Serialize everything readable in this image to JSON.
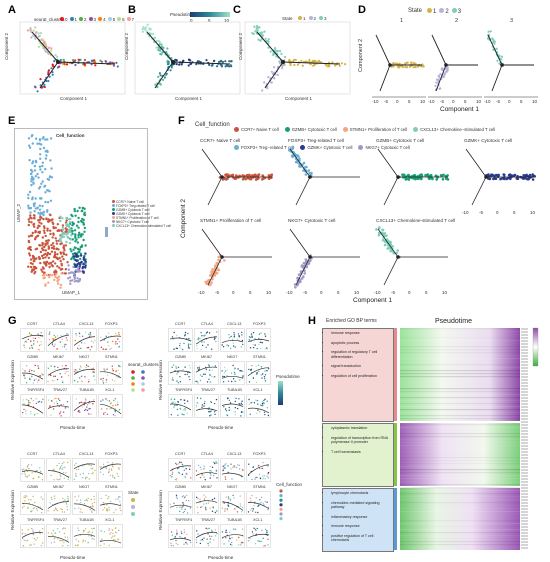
{
  "panels": {
    "A": {
      "letter": "A",
      "legend_title": "seurat_clusters",
      "legend_items": [
        "0",
        "1",
        "2",
        "3",
        "4",
        "5",
        "6",
        "7"
      ],
      "xlabel": "Component 1",
      "ylabel": "Component 2"
    },
    "B": {
      "letter": "B",
      "legend_title": "Pseudotime",
      "ticks": [
        "0",
        "5",
        "10"
      ],
      "xlabel": "Component 1",
      "ylabel": "Component 2"
    },
    "C": {
      "letter": "C",
      "legend_title": "State",
      "legend_items": [
        "1",
        "2",
        "3"
      ],
      "xlabel": "Component 1",
      "ylabel": "Component 2"
    },
    "D": {
      "letter": "D",
      "legend_title": "State",
      "legend_items": [
        "1",
        "2",
        "3"
      ],
      "facets": [
        "1",
        "2",
        "3"
      ],
      "xticks": [
        "-10",
        "-5",
        "0",
        "5",
        "10"
      ],
      "xlabel": "Component 1",
      "ylabel": "Component 2"
    },
    "E": {
      "letter": "E",
      "title": "Cell_function",
      "xlabel": "UMAP_1",
      "ylabel": "UMAP_2",
      "legend": [
        "CCR7+ Naive T cell",
        "FOXP3+ Treg-related T cell",
        "GZMB+ Cytotoxic T cell",
        "GZMK+ Cytotoxic T cell",
        "STMN1+ Proliferation of T cell",
        "NKG7+ Cytotoxic T cell",
        "CXCL13+ Chemokine-stimulated T cell"
      ]
    },
    "F": {
      "letter": "F",
      "legend_title": "Cell_function",
      "legend": [
        "CCR7+ Naive T cell",
        "GZMB+ Cytotoxic T cell",
        "STMN1+ Proliferation of T cell",
        "CXCL13+ Chemokine−stimulated T cell",
        "FOXP3+ Treg−related T cell",
        "GZMK+ Cytotoxic T cell",
        "NKG7+ Cytotoxic T cell"
      ],
      "facets_top": [
        "CCR7+ Naive T cell",
        "FOXP3+ Treg-related T cell",
        "GZMB+ Cytotoxic T cell",
        "GZMK+ Cytotoxic T cell"
      ],
      "facets_bottom": [
        "STMN1+ Proliferation of T cell",
        "NKG7+ Cytotoxic T cell",
        "CXCL13+ Chemokine-stimulated T cell"
      ],
      "xticks": [
        "-10",
        "-5",
        "0",
        "5",
        "10"
      ],
      "xlabel": "Component 1",
      "ylabel": "Component 2"
    },
    "G": {
      "letter": "G",
      "genes": [
        "CCR7",
        "CTLA4",
        "CXCL13",
        "FOXP3",
        "GZMB",
        "MKI67",
        "NKG7",
        "STMN1",
        "TNFRSF4",
        "TRAV27",
        "TUBA1B",
        "XCL1"
      ],
      "xlabel": "Pseudo-time",
      "ylabel": "Relative Expression",
      "legend1_title": "seurat_clusters",
      "legend2_title": "Pseudotime",
      "legend3_title": "State",
      "legend4_title": "Cell_function"
    },
    "H": {
      "letter": "H",
      "col_title": "Enriched GO BP terms",
      "heat_title": "Pseudotime",
      "cluster1": [
        "immune response",
        "apoptotic process",
        "regulation of regulatory T cell differentiation",
        "signal transduction",
        "regulation of cell proliferation"
      ],
      "cluster2": [
        "cytoplasmic translation",
        "regulation of transcription from RNA polymerase II promoter",
        "T cell homeostasis"
      ],
      "cluster3": [
        "lymphocyte chemotaxis",
        "chemokine-mediated signaling pathway",
        "inflammatory response",
        "immune response",
        "positive regulation of T cell chemotaxis"
      ]
    }
  },
  "colors": {
    "naive": "#c8553d",
    "treg": "#6baed6",
    "gzmb": "#1b9e77",
    "gzmk": "#2b3a8c",
    "stmn1": "#f4a582",
    "nkg7": "#9e9ac8",
    "cxcl13": "#7fcdbb",
    "state1": "#d4b24a",
    "state2": "#b7b2d9",
    "state3": "#7fcdbb",
    "go1": "#f6d5d5",
    "go2": "#e2f2cf",
    "go3": "#cfe3f6"
  }
}
